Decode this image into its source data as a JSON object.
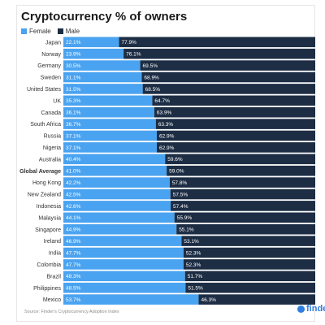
{
  "colors": {
    "female": "#4aa3f0",
    "male": "#1d2d44",
    "labelText": "#ffffff",
    "categoryText": "#333333"
  },
  "source_text": "Source: Finder's Cryptocurrency Adoption Index",
  "logo": {
    "text": "finder",
    "icon": "finder-logo-icon"
  },
  "chart_data": {
    "type": "bar",
    "stacked": true,
    "orientation": "horizontal",
    "title": "Cryptocurrency % of owners",
    "legend_position": "top-left",
    "xlim": [
      0,
      100
    ],
    "categories": [
      "Japan",
      "Norway",
      "Germany",
      "Sweden",
      "United States",
      "UK",
      "Canada",
      "South Africa",
      "Russia",
      "Nigeria",
      "Australia",
      "Global Average",
      "Hong Kong",
      "New Zealand",
      "Indonesia",
      "Malaysia",
      "Singapore",
      "Ireland",
      "India",
      "Colombia",
      "Brazil",
      "Philippines",
      "Mexico"
    ],
    "highlight_category": "Global Average",
    "series": [
      {
        "name": "Female",
        "values": [
          22.1,
          23.9,
          30.5,
          31.1,
          31.5,
          35.3,
          36.1,
          36.7,
          37.1,
          37.1,
          40.4,
          41.0,
          42.2,
          42.5,
          42.6,
          44.1,
          44.9,
          46.9,
          47.7,
          47.7,
          48.3,
          48.5,
          53.7
        ],
        "labels": [
          "22.1%",
          "23.9%",
          "30.5%",
          "31.1%",
          "31.5%",
          "35.3%",
          "36.1%",
          "36.7%",
          "37.1%",
          "37.1%",
          "40.4%",
          "41.0%",
          "42.2%",
          "42.5%",
          "42.6%",
          "44.1%",
          "44.9%",
          "46.9%",
          "47.7%",
          "47.7%",
          "48.3%",
          "48.5%",
          "53.7%"
        ]
      },
      {
        "name": "Male",
        "values": [
          77.9,
          76.1,
          69.5,
          68.9,
          68.5,
          64.7,
          63.9,
          63.3,
          62.9,
          62.9,
          59.6,
          59.0,
          57.8,
          57.5,
          57.4,
          55.9,
          55.1,
          53.1,
          52.3,
          52.3,
          51.7,
          51.5,
          46.3
        ],
        "labels": [
          "77.9%",
          "76.1%",
          "69.5%",
          "68.9%",
          "68.5%",
          "64.7%",
          "63.9%",
          "63.3%",
          "62.9%",
          "62.9%",
          "59.6%",
          "59.0%",
          "57.8%",
          "57.5%",
          "57.4%",
          "55.9%",
          "55.1%",
          "53.1%",
          "52.3%",
          "52.3%",
          "51.7%",
          "51.5%",
          "46.3%"
        ]
      }
    ]
  }
}
